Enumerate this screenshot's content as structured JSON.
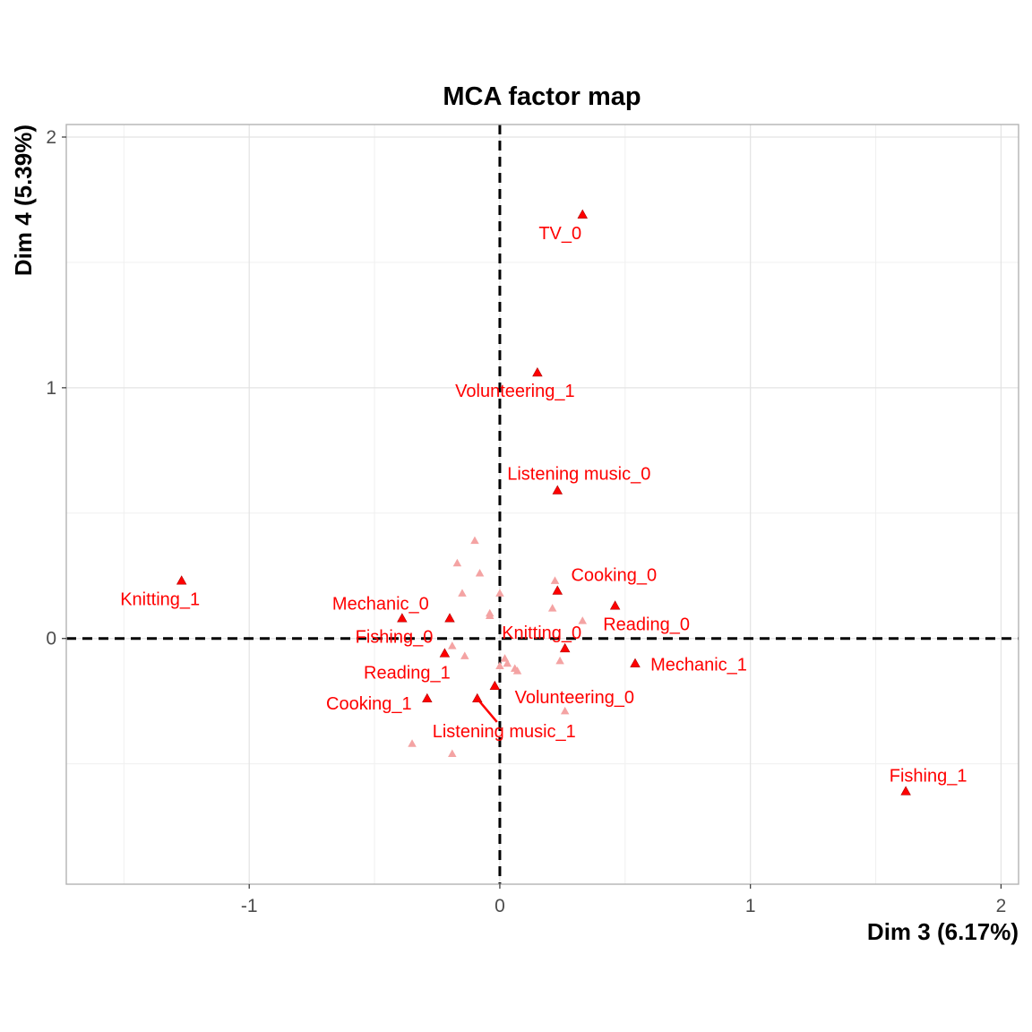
{
  "chart_data": {
    "type": "scatter",
    "title": "MCA factor map",
    "xlabel": "Dim 3 (6.17%)",
    "ylabel": "Dim 4 (5.39%)",
    "xlim": [
      -1.73,
      2.07
    ],
    "ylim": [
      -0.98,
      2.05
    ],
    "x_ticks": [
      -1,
      0,
      1,
      2
    ],
    "y_ticks": [
      0,
      1,
      2
    ],
    "x_tick_labels": [
      "-1",
      "0",
      "1",
      "2"
    ],
    "y_tick_labels": [
      "0",
      "1",
      "2"
    ],
    "grid": true,
    "reference_lines": {
      "x": 0,
      "y": 0,
      "style": "dashed"
    },
    "point_color": "#ff0000",
    "background_point_color": "#f4a3a3",
    "labeled_points": [
      {
        "name": "TV_0",
        "x": 0.33,
        "y": 1.69
      },
      {
        "name": "Volunteering_1",
        "x": 0.15,
        "y": 1.06
      },
      {
        "name": "Listening music_0",
        "x": 0.23,
        "y": 0.59
      },
      {
        "name": "Knitting_1",
        "x": -1.27,
        "y": 0.23
      },
      {
        "name": "Cooking_0",
        "x": 0.23,
        "y": 0.19
      },
      {
        "name": "Mechanic_0",
        "x": -0.39,
        "y": 0.08
      },
      {
        "name": "Reading_0",
        "x": 0.46,
        "y": 0.13
      },
      {
        "name": "Fishing_0",
        "x": -0.2,
        "y": 0.08
      },
      {
        "name": "Knitting_0",
        "x": 0.26,
        "y": -0.04
      },
      {
        "name": "Reading_1",
        "x": -0.22,
        "y": -0.06
      },
      {
        "name": "Mechanic_1",
        "x": 0.54,
        "y": -0.1
      },
      {
        "name": "Volunteering_0",
        "x": -0.02,
        "y": -0.19
      },
      {
        "name": "Cooking_1",
        "x": -0.29,
        "y": -0.24
      },
      {
        "name": "Listening music_1",
        "x": -0.09,
        "y": -0.24
      },
      {
        "name": "Fishing_1",
        "x": 1.62,
        "y": -0.61
      }
    ],
    "background_points": [
      {
        "x": -0.1,
        "y": 0.39
      },
      {
        "x": -0.17,
        "y": 0.3
      },
      {
        "x": -0.08,
        "y": 0.26
      },
      {
        "x": -0.15,
        "y": 0.18
      },
      {
        "x": 0.0,
        "y": 0.18
      },
      {
        "x": -0.04,
        "y": 0.1
      },
      {
        "x": -0.04,
        "y": 0.09
      },
      {
        "x": 0.22,
        "y": 0.23
      },
      {
        "x": 0.21,
        "y": 0.12
      },
      {
        "x": 0.33,
        "y": 0.07
      },
      {
        "x": -0.19,
        "y": -0.03
      },
      {
        "x": -0.14,
        "y": -0.07
      },
      {
        "x": 0.02,
        "y": -0.08
      },
      {
        "x": 0.03,
        "y": -0.1
      },
      {
        "x": 0.0,
        "y": -0.11
      },
      {
        "x": 0.06,
        "y": -0.12
      },
      {
        "x": 0.07,
        "y": -0.13
      },
      {
        "x": 0.24,
        "y": -0.09
      },
      {
        "x": 0.26,
        "y": -0.29
      },
      {
        "x": -0.35,
        "y": -0.42
      },
      {
        "x": -0.19,
        "y": -0.46
      }
    ]
  }
}
